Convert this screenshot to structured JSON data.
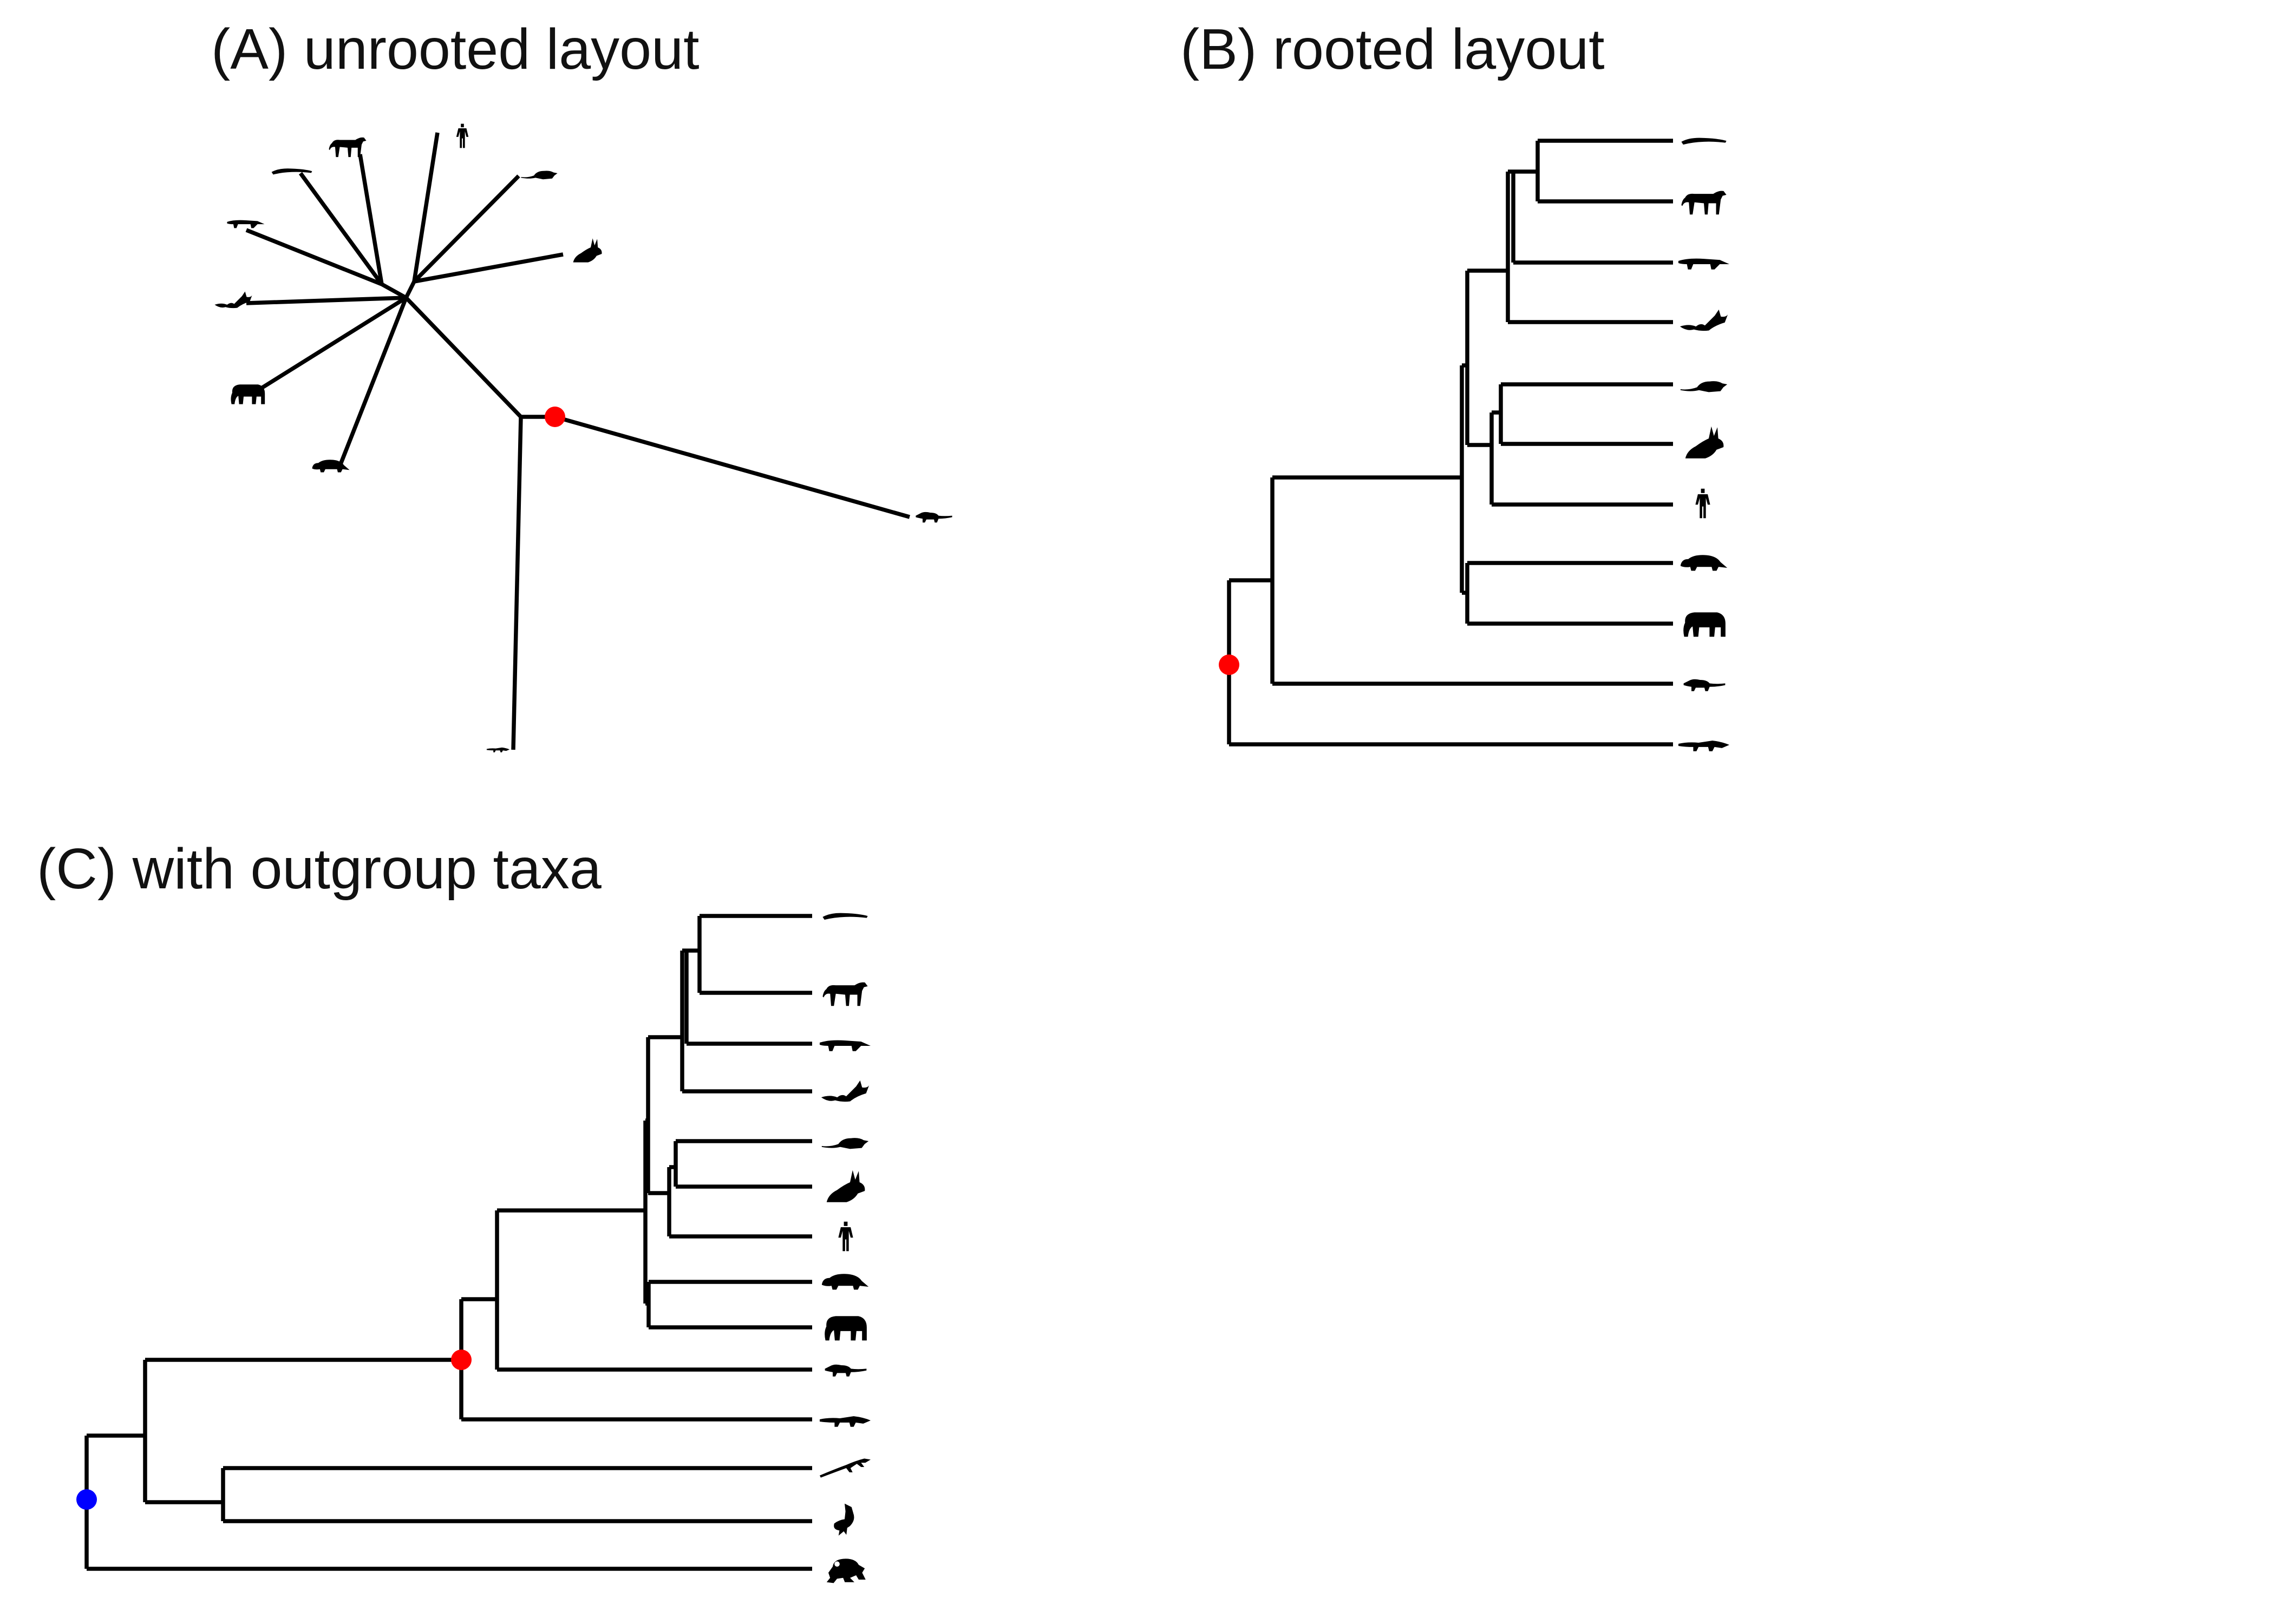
{
  "panels": {
    "a": {
      "title": "(A) unrooted layout"
    },
    "b": {
      "title": "(B) rooted layout"
    },
    "c": {
      "title": "(C) with outgroup taxa"
    }
  },
  "colors": {
    "branch": "#000000",
    "ingroup_root_marker": "#ff0000",
    "outgroup_root_marker": "#0000ff"
  },
  "ingroup_taxa_icons": [
    "platypus-icon",
    "horse-icon",
    "anteater-icon",
    "bat-icon",
    "rat-icon",
    "rabbit-icon",
    "human-icon",
    "armadillo-icon",
    "elephant-icon",
    "opossum-icon",
    "crocodile-icon"
  ],
  "outgroup_taxa_icons": [
    "lizard-icon",
    "bird-icon",
    "frog-icon"
  ]
}
